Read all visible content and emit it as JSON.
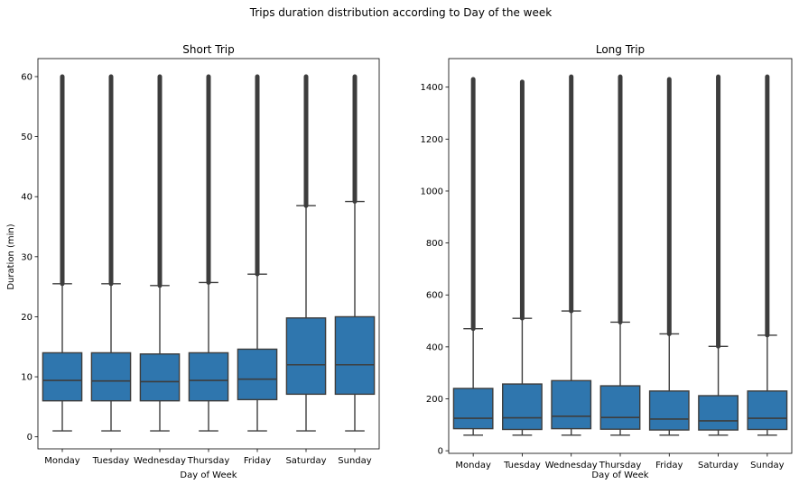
{
  "figure": {
    "suptitle": "Trips duration distribution according to Day of the week"
  },
  "chart_data": [
    {
      "type": "box",
      "title": "Short Trip",
      "xlabel": "Day of Week",
      "ylabel": "Duration (min)",
      "ylim": [
        -2,
        63
      ],
      "yticks": [
        0,
        10,
        20,
        30,
        40,
        50,
        60
      ],
      "color": "#2f76ae",
      "categories": [
        "Monday",
        "Tuesday",
        "Wednesday",
        "Thursday",
        "Friday",
        "Saturday",
        "Sunday"
      ],
      "boxes": [
        {
          "whislo": 1,
          "q1": 6.0,
          "med": 9.4,
          "q3": 14.0,
          "whishi": 25.5,
          "flier_min": 25.5,
          "flier_max": 60
        },
        {
          "whislo": 1,
          "q1": 6.0,
          "med": 9.3,
          "q3": 14.0,
          "whishi": 25.5,
          "flier_min": 25.5,
          "flier_max": 60
        },
        {
          "whislo": 1,
          "q1": 6.0,
          "med": 9.2,
          "q3": 13.8,
          "whishi": 25.2,
          "flier_min": 25.2,
          "flier_max": 60
        },
        {
          "whislo": 1,
          "q1": 6.0,
          "med": 9.4,
          "q3": 14.0,
          "whishi": 25.7,
          "flier_min": 25.7,
          "flier_max": 60
        },
        {
          "whislo": 1,
          "q1": 6.2,
          "med": 9.6,
          "q3": 14.6,
          "whishi": 27.1,
          "flier_min": 27.1,
          "flier_max": 60
        },
        {
          "whislo": 1,
          "q1": 7.1,
          "med": 12.0,
          "q3": 19.8,
          "whishi": 38.5,
          "flier_min": 38.5,
          "flier_max": 60
        },
        {
          "whislo": 1,
          "q1": 7.1,
          "med": 12.0,
          "q3": 20.0,
          "whishi": 39.2,
          "flier_min": 39.2,
          "flier_max": 60
        }
      ]
    },
    {
      "type": "box",
      "title": "Long Trip",
      "xlabel": "Day of Week",
      "ylabel": "",
      "ylim": [
        -10,
        1510
      ],
      "yticks": [
        0,
        200,
        400,
        600,
        800,
        1000,
        1200,
        1400
      ],
      "color": "#2f76ae",
      "categories": [
        "Monday",
        "Tuesday",
        "Wednesday",
        "Thursday",
        "Friday",
        "Saturday",
        "Sunday"
      ],
      "boxes": [
        {
          "whislo": 60,
          "q1": 85,
          "med": 125,
          "q3": 240,
          "whishi": 470,
          "flier_min": 470,
          "flier_max": 1430
        },
        {
          "whislo": 60,
          "q1": 82,
          "med": 127,
          "q3": 257,
          "whishi": 510,
          "flier_min": 510,
          "flier_max": 1420
        },
        {
          "whislo": 60,
          "q1": 85,
          "med": 133,
          "q3": 270,
          "whishi": 538,
          "flier_min": 538,
          "flier_max": 1440
        },
        {
          "whislo": 60,
          "q1": 83,
          "med": 128,
          "q3": 250,
          "whishi": 495,
          "flier_min": 495,
          "flier_max": 1440
        },
        {
          "whislo": 60,
          "q1": 80,
          "med": 122,
          "q3": 230,
          "whishi": 450,
          "flier_min": 450,
          "flier_max": 1430
        },
        {
          "whislo": 60,
          "q1": 80,
          "med": 115,
          "q3": 212,
          "whishi": 402,
          "flier_min": 402,
          "flier_max": 1440
        },
        {
          "whislo": 60,
          "q1": 82,
          "med": 125,
          "q3": 230,
          "whishi": 445,
          "flier_min": 445,
          "flier_max": 1440
        }
      ]
    }
  ]
}
